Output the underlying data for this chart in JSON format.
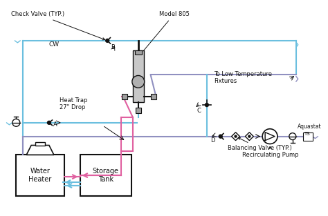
{
  "bg_color": "#ffffff",
  "cw_color": "#6bbfdf",
  "hot_color": "#e060a0",
  "mixed_color": "#9090c0",
  "figsize": [
    4.74,
    3.13
  ],
  "dpi": 100,
  "labels": {
    "check_valve": "Check Valve (TYP.)",
    "model": "Model 805",
    "heat_trap": "Heat Trap\n27\" Drop",
    "low_temp": "To Low Temperature\nFixtures",
    "balancing": "Balancing Valve (TYP.)",
    "recirc": "Recirculating Pump",
    "aquastat": "Aquastat",
    "ts": "TS",
    "storage": "Storage\nTank",
    "water_heater": "Water\nHeater",
    "cw": "CW",
    "A": "A",
    "B": "B",
    "C": "C",
    "D": "D"
  }
}
